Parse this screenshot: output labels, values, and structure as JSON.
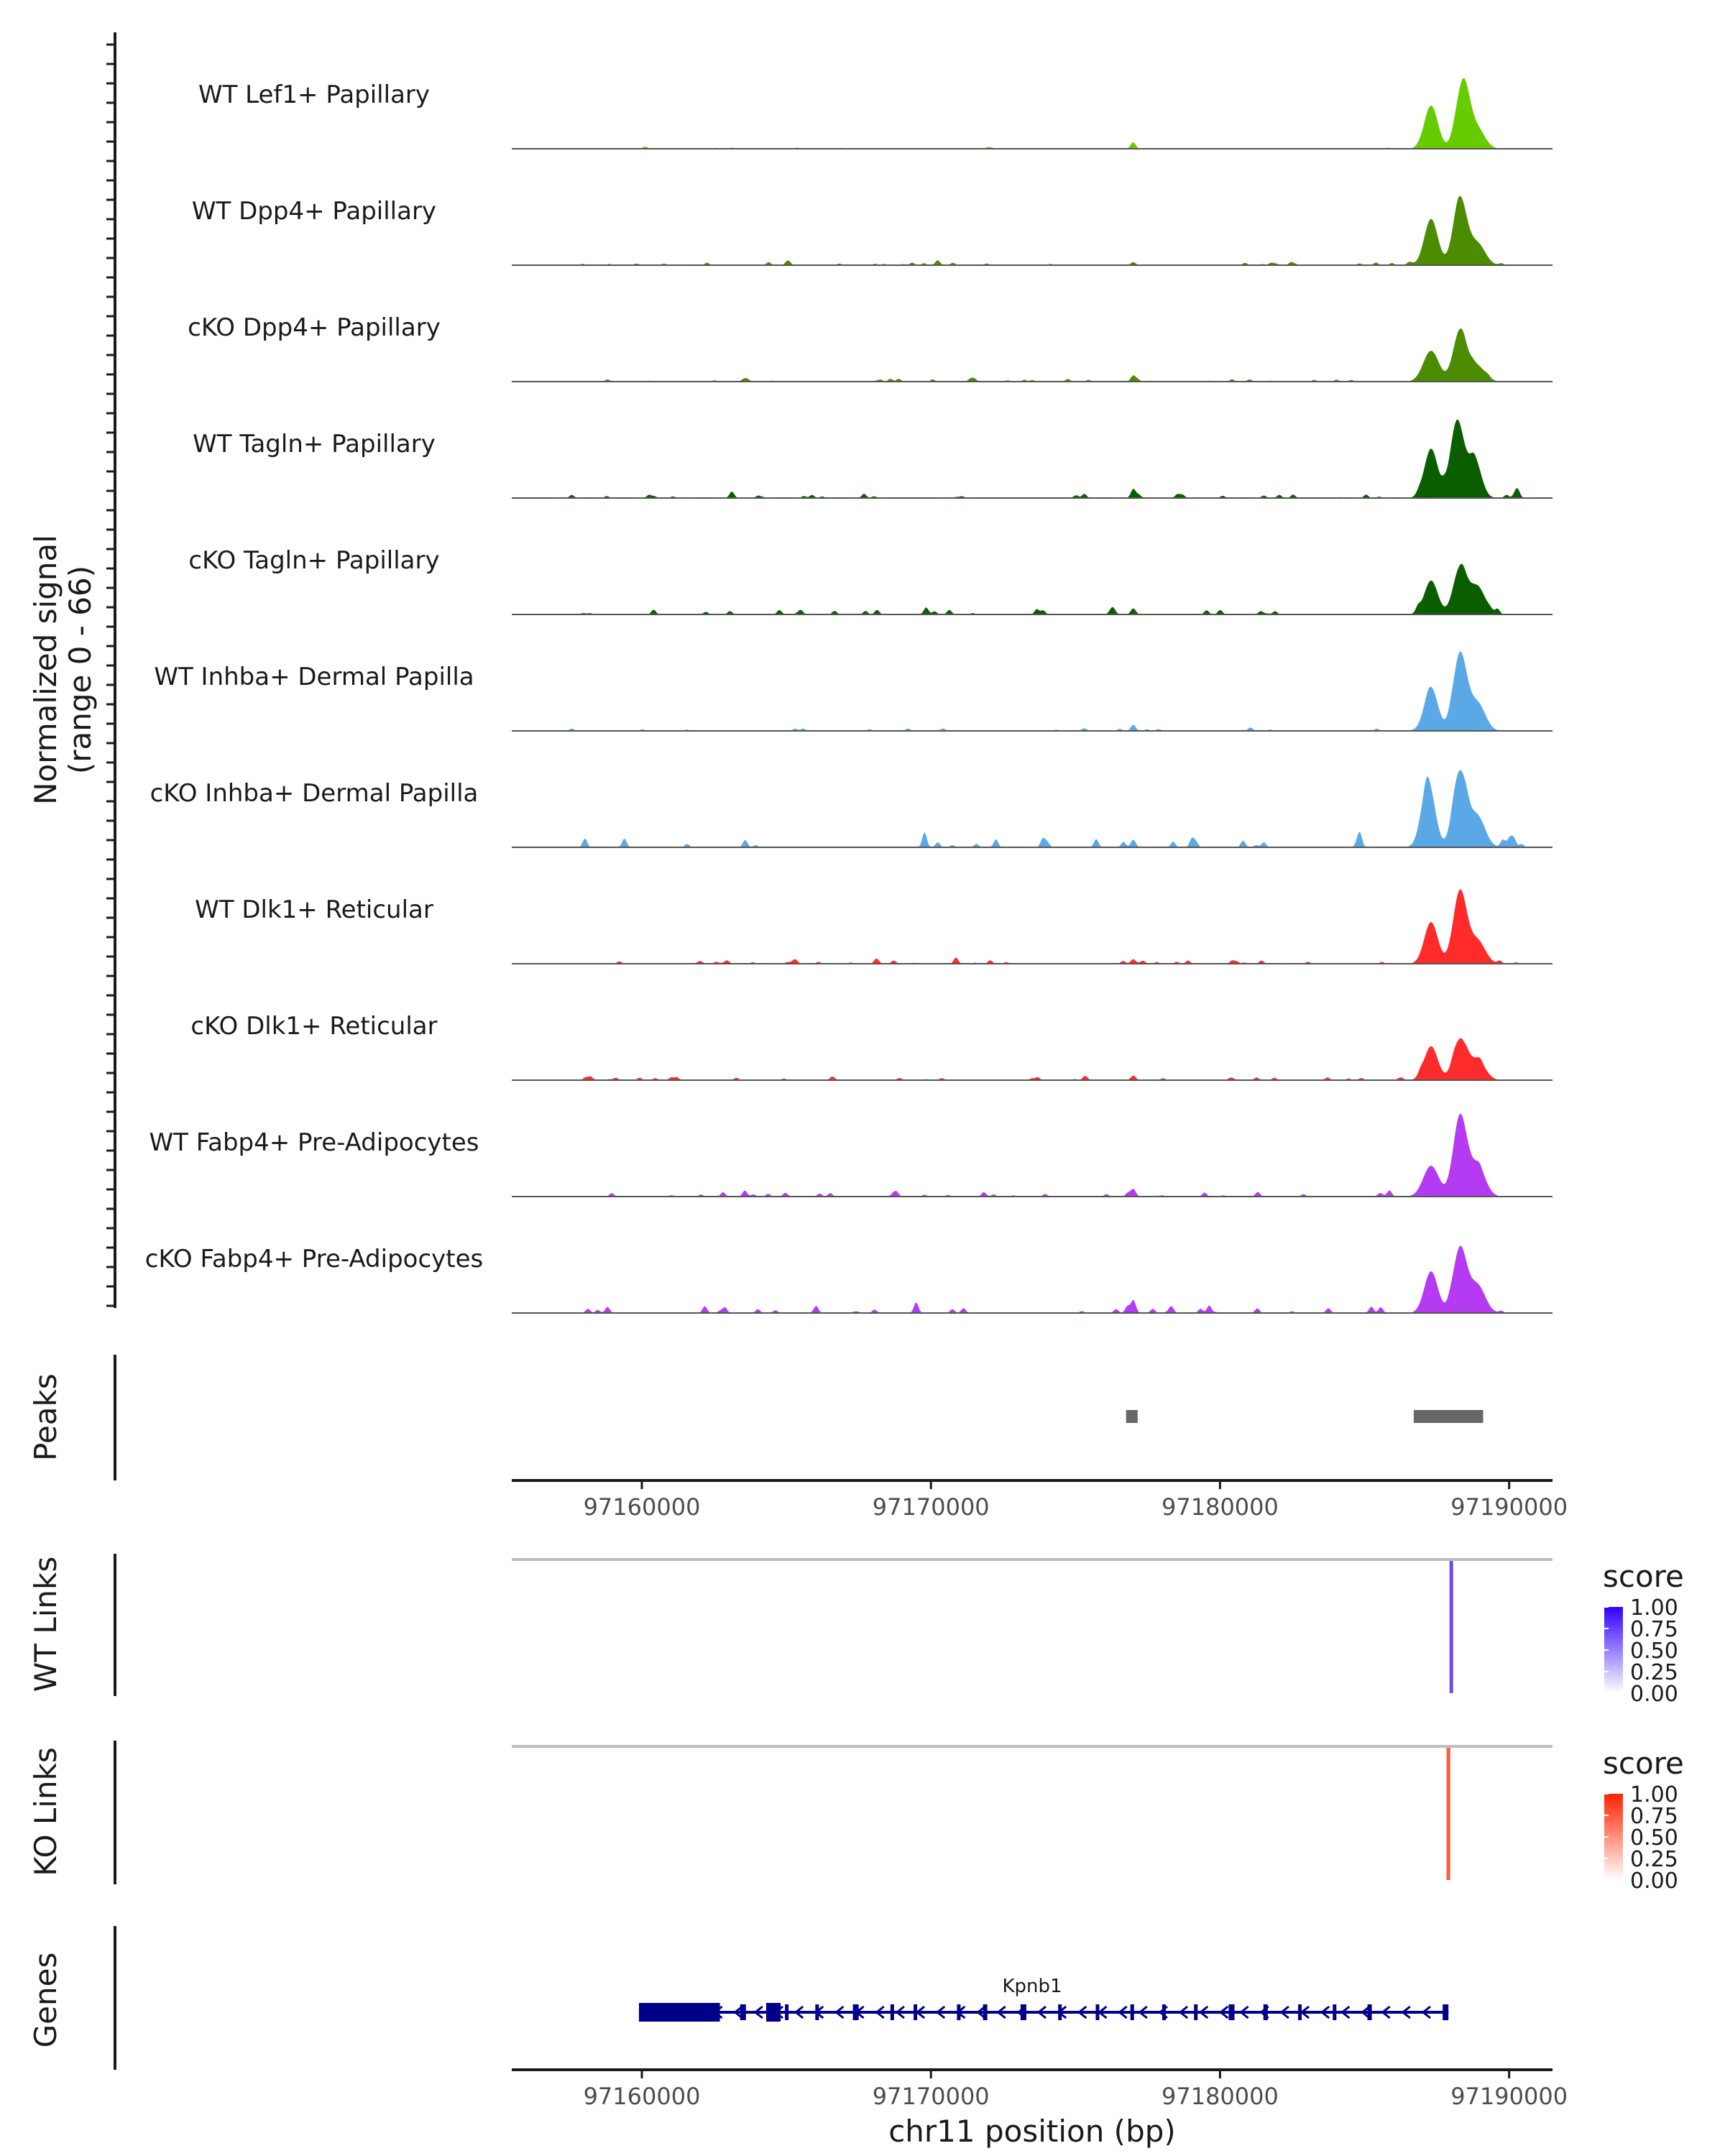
{
  "chart_data": {
    "type": "area",
    "title": "",
    "y_axis_title_lines": [
      "Normalized signal",
      "(range 0 - 66)"
    ],
    "ylim": [
      0,
      66
    ],
    "x_axis_title": "chr11 position (bp)",
    "xlim": [
      97155500,
      97191500
    ],
    "x_ticks": [
      97160000,
      97170000,
      97180000,
      97190000
    ],
    "x_tick_labels": [
      "97160000",
      "97170000",
      "97180000",
      "97190000"
    ],
    "coverage_tracks": [
      {
        "name": "WT Lef1+ Papillary",
        "color": "#66CC00",
        "peaks": [
          [
            97187300,
            28
          ],
          [
            97188400,
            43
          ],
          [
            97188900,
            12
          ],
          [
            97177000,
            4
          ]
        ],
        "noise_level": 0.4
      },
      {
        "name": "WT Dpp4+ Papillary",
        "color": "#4C8C00",
        "peaks": [
          [
            97187300,
            30
          ],
          [
            97188300,
            43
          ],
          [
            97188900,
            14
          ],
          [
            97177000,
            2
          ]
        ],
        "noise_level": 1.0
      },
      {
        "name": "cKO Dpp4+ Papillary",
        "color": "#4C8C00",
        "peaks": [
          [
            97187300,
            20
          ],
          [
            97188300,
            33
          ],
          [
            97188900,
            10
          ],
          [
            97177000,
            4
          ]
        ],
        "noise_level": 1.0
      },
      {
        "name": "WT Tagln+ Papillary",
        "color": "#0B5E00",
        "peaks": [
          [
            97187300,
            32
          ],
          [
            97188200,
            50
          ],
          [
            97188800,
            25
          ],
          [
            97177000,
            6
          ]
        ],
        "noise_level": 1.5
      },
      {
        "name": "cKO Tagln+ Papillary",
        "color": "#0B5E00",
        "peaks": [
          [
            97187300,
            22
          ],
          [
            97188300,
            30
          ],
          [
            97188900,
            18
          ],
          [
            97177000,
            4
          ]
        ],
        "noise_level": 1.8
      },
      {
        "name": "WT Inhba+ Dermal Papilla",
        "color": "#5AA9E6",
        "peaks": [
          [
            97187300,
            28
          ],
          [
            97188300,
            50
          ],
          [
            97188900,
            18
          ],
          [
            97177000,
            4
          ]
        ],
        "noise_level": 0.8
      },
      {
        "name": "cKO Inhba+ Dermal Papilla",
        "color": "#5AA9E6",
        "peaks": [
          [
            97187200,
            42
          ],
          [
            97188300,
            48
          ],
          [
            97188900,
            20
          ],
          [
            97177000,
            5
          ]
        ],
        "noise_level": 3.0
      },
      {
        "name": "WT Dlk1+ Reticular",
        "color": "#FF2A2A",
        "peaks": [
          [
            97187300,
            27
          ],
          [
            97188300,
            47
          ],
          [
            97188900,
            15
          ],
          [
            97177000,
            3
          ]
        ],
        "noise_level": 1.2
      },
      {
        "name": "cKO Dlk1+ Reticular",
        "color": "#FF2A2A",
        "peaks": [
          [
            97187300,
            22
          ],
          [
            97188300,
            26
          ],
          [
            97188900,
            13
          ],
          [
            97177000,
            3
          ]
        ],
        "noise_level": 1.2
      },
      {
        "name": "WT Fabp4+ Pre-Adipocytes",
        "color": "#B43BF2",
        "peaks": [
          [
            97187300,
            20
          ],
          [
            97188300,
            52
          ],
          [
            97188900,
            20
          ],
          [
            97177000,
            5
          ]
        ],
        "noise_level": 1.5
      },
      {
        "name": "cKO Fabp4+ Pre-Adipocytes",
        "color": "#B43BF2",
        "peaks": [
          [
            97187300,
            27
          ],
          [
            97188300,
            42
          ],
          [
            97188900,
            18
          ],
          [
            97177000,
            8
          ]
        ],
        "noise_level": 2.5
      }
    ],
    "peaks_track": {
      "title": "Peaks",
      "color": "#666666",
      "regions": [
        [
          97176750,
          97177150
        ],
        [
          97186700,
          97189100
        ]
      ]
    },
    "links_tracks": [
      {
        "title": "WT Links",
        "color": "#7147EF",
        "link_position": 97188000,
        "score": 0.85,
        "legend": {
          "title": "score",
          "low_color": "#FFFFFF",
          "high_color": "#3300FF",
          "ticks": [
            "1.00",
            "0.75",
            "0.50",
            "0.25",
            "0.00"
          ]
        }
      },
      {
        "title": "KO Links",
        "color": "#FF5A3A",
        "link_position": 97187900,
        "score": 0.85,
        "legend": {
          "title": "score",
          "low_color": "#FFFFFF",
          "high_color": "#FF2200",
          "ticks": [
            "1.00",
            "0.75",
            "0.50",
            "0.25",
            "0.00"
          ]
        }
      }
    ],
    "genes_track": {
      "title": "Genes",
      "color": "#00008B",
      "gene_name": "Kpnb1",
      "strand": "-",
      "start": 97159900,
      "end": 97187900,
      "exons": [
        [
          97159900,
          97162700
        ],
        [
          97163400,
          97163600
        ],
        [
          97164300,
          97164800
        ],
        [
          97164950,
          97165050
        ],
        [
          97166000,
          97166100
        ],
        [
          97167300,
          97167500
        ],
        [
          97168600,
          97168700
        ],
        [
          97169400,
          97169500
        ],
        [
          97170900,
          97171000
        ],
        [
          97171800,
          97171950
        ],
        [
          97173100,
          97173300
        ],
        [
          97174400,
          97174500
        ],
        [
          97175700,
          97175800
        ],
        [
          97176900,
          97177000
        ],
        [
          97178000,
          97178100
        ],
        [
          97179100,
          97179200
        ],
        [
          97180300,
          97180500
        ],
        [
          97181500,
          97181650
        ],
        [
          97182700,
          97182800
        ],
        [
          97183900,
          97184000
        ],
        [
          97185100,
          97185250
        ],
        [
          97187700,
          97187900
        ]
      ]
    }
  }
}
